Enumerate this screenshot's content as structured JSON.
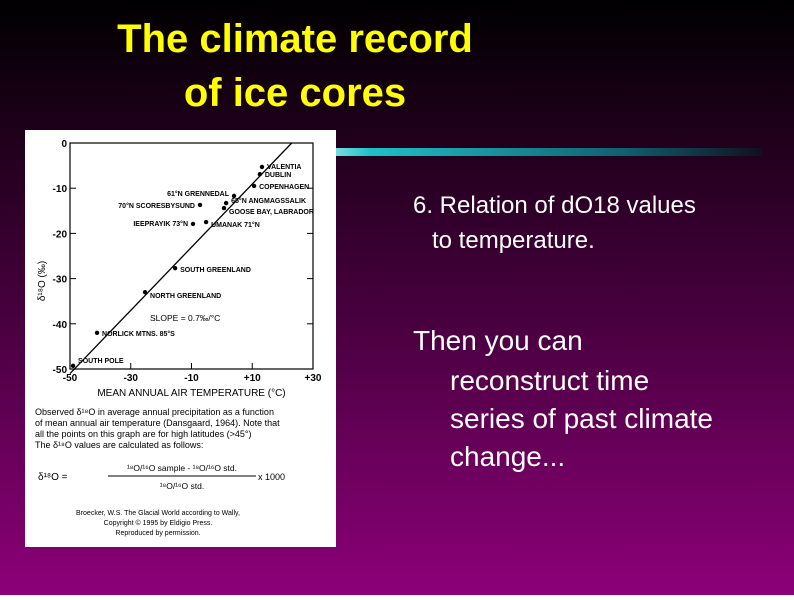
{
  "slide": {
    "title": [
      "The climate record",
      "of ice cores"
    ],
    "bullets": [
      {
        "lines": [
          "6. Relation of dO18 values",
          "to temperature."
        ]
      },
      {
        "lines": [
          "Then you can",
          "reconstruct time",
          "series of past climate",
          "change..."
        ]
      }
    ]
  },
  "chart_data": {
    "type": "scatter",
    "x_label": "MEAN ANNUAL AIR TEMPERATURE (°C)",
    "y_label": "δ¹⁸O (‰)",
    "xlim": [
      -50,
      30
    ],
    "xticks": [
      -50,
      -30,
      -10,
      {
        "value": 10,
        "label": "+10"
      },
      {
        "value": 30,
        "label": "+30"
      }
    ],
    "ylim": [
      -50,
      0
    ],
    "yticks": [
      0,
      -10,
      -20,
      -30,
      -40,
      -50
    ],
    "color": "#000000",
    "x": [
      13.2,
      12.5,
      10.6,
      1.4,
      0.7,
      -5.2,
      -9.5,
      4,
      -7.2,
      -15.4,
      -25.3,
      -41.1,
      -49
    ],
    "values": [
      -5.3,
      -6.9,
      -9.5,
      -13.3,
      -14.4,
      -17.5,
      -17.9,
      -11.7,
      -13.7,
      -27.7,
      -33,
      -42,
      -49.3
    ],
    "point_labels": [
      "VALENTIA",
      "DUBLIN",
      "COPENHAGEN",
      "65°N ANGMAGSSALIK",
      "GOOSE BAY, LABRADOR",
      "UMANAK 71°N",
      "IEEPRAYIK 73°N",
      "61°N GRENNEDAL",
      "70°N SCORESBYSUND",
      "SOUTH GREENLAND",
      "NORTH GREENLAND",
      "NORLICK MTNS. 85°S",
      "SOUTH POLE"
    ],
    "fit_line": {
      "x": [
        -50,
        23
      ],
      "y": [
        -51,
        0
      ]
    },
    "annotation": "SLOPE = 0.7‰/°C"
  },
  "figure_text": {
    "caption": [
      "Observed δ¹⁸O in average annual precipitation as a function",
      "of mean annual air temperature (Dansgaard, 1964). Note that",
      "all the points on this graph are for high latitudes (>45°)",
      "The δ¹⁸O values are calculated as follows:"
    ],
    "formula": {
      "lhs": "δ¹⁸O =",
      "numerator": "¹⁸O/¹⁶O sample - ¹⁸O/¹⁶O std.",
      "denominator": "¹⁸O/¹⁶O std.",
      "factor": "x 1000"
    },
    "credit": [
      "Broecker, W.S. The Glacial World according to Wally,",
      "Copyright © 1995 by Eldigio Press.",
      "Reproduced by permission."
    ]
  }
}
